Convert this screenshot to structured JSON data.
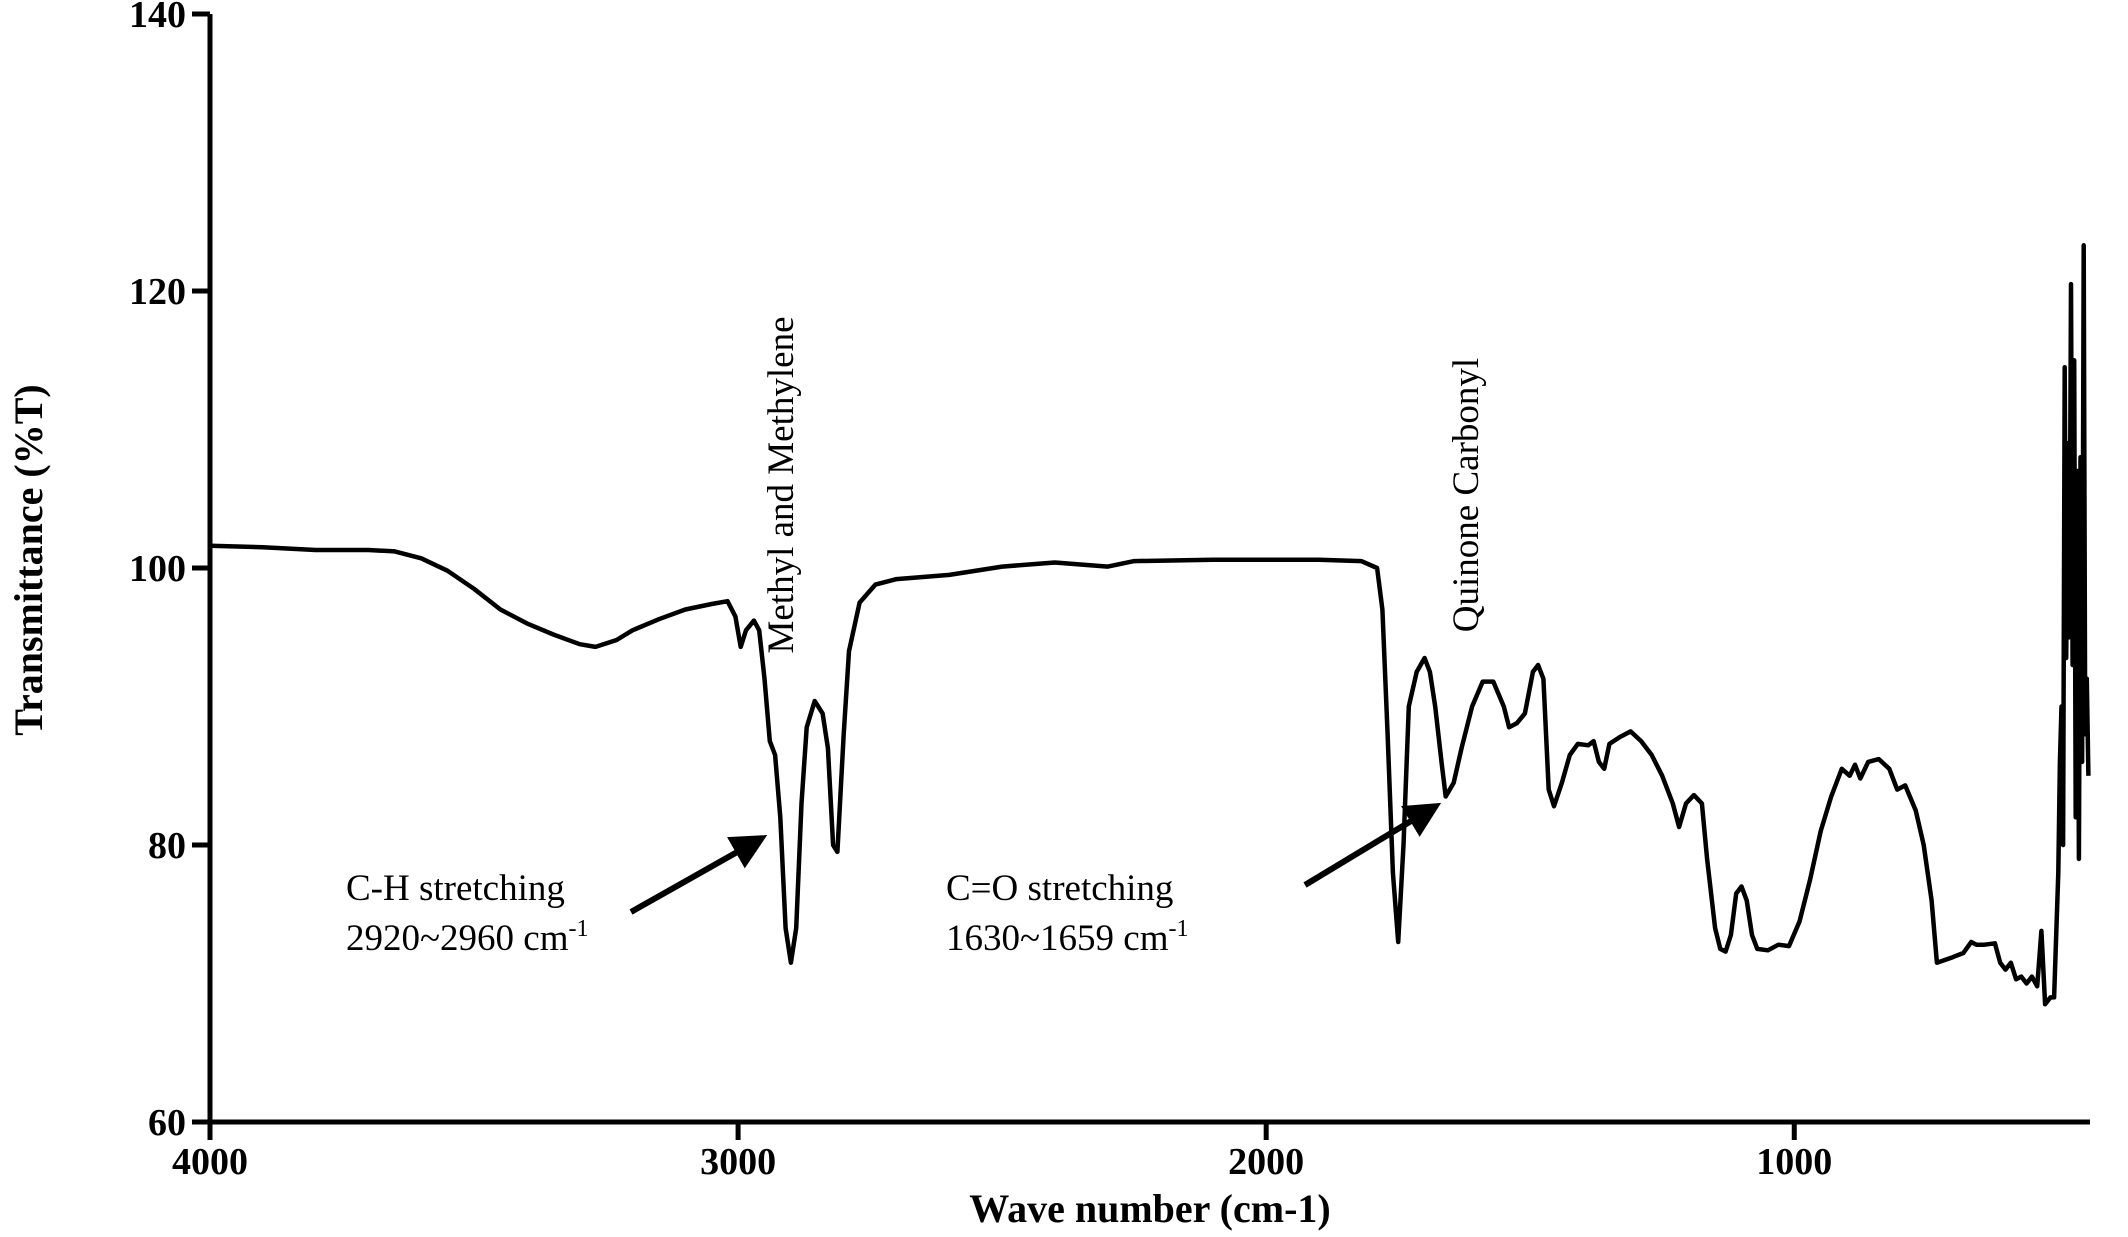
{
  "chart_data": {
    "type": "line",
    "x_label": "Wave number (cm-1)",
    "y_label": "Transmittance (%T)",
    "xlim": [
      4000,
      440
    ],
    "xticks": [
      4000,
      3000,
      2000,
      1000
    ],
    "ylim": [
      60,
      140
    ],
    "yticks": [
      60,
      80,
      100,
      120,
      140
    ],
    "grid": false,
    "annotations": [
      {
        "text": "Methyl and Methylene"
      },
      {
        "text": "Quinone Carbonyl"
      },
      {
        "text": "C-H stretching"
      },
      {
        "text": "2920~2960 cm",
        "sup": "-1"
      },
      {
        "text": "C=O stretching"
      },
      {
        "text": "1630~1659 cm",
        "sup": "-1"
      }
    ],
    "series": [
      {
        "color": "#000000",
        "x": [
          4000,
          3900,
          3800,
          3700,
          3650,
          3600,
          3550,
          3500,
          3450,
          3400,
          3350,
          3300,
          3270,
          3230,
          3200,
          3150,
          3100,
          3050,
          3020,
          3005,
          2995,
          2985,
          2970,
          2960,
          2950,
          2940,
          2930,
          2920,
          2910,
          2900,
          2890,
          2880,
          2870,
          2855,
          2840,
          2830,
          2820,
          2812,
          2800,
          2790,
          2770,
          2740,
          2700,
          2600,
          2500,
          2400,
          2300,
          2250,
          2100,
          2000,
          1900,
          1820,
          1790,
          1780,
          1770,
          1760,
          1750,
          1740,
          1730,
          1715,
          1700,
          1690,
          1680,
          1668,
          1660,
          1645,
          1630,
          1610,
          1590,
          1570,
          1550,
          1540,
          1525,
          1510,
          1495,
          1485,
          1475,
          1465,
          1455,
          1440,
          1425,
          1410,
          1390,
          1380,
          1370,
          1360,
          1350,
          1330,
          1310,
          1290,
          1270,
          1250,
          1230,
          1218,
          1205,
          1190,
          1175,
          1165,
          1150,
          1140,
          1130,
          1120,
          1110,
          1100,
          1090,
          1080,
          1070,
          1050,
          1030,
          1010,
          990,
          970,
          950,
          930,
          910,
          895,
          885,
          875,
          860,
          840,
          820,
          805,
          790,
          770,
          755,
          740,
          730,
          715,
          700,
          680,
          665,
          655,
          640,
          620,
          610,
          600,
          590,
          580,
          570,
          560,
          550,
          540,
          532,
          525,
          515,
          508,
          500,
          497,
          494,
          491,
          488,
          485,
          482,
          479,
          476,
          473,
          470,
          467,
          464,
          461,
          458,
          455,
          452,
          449,
          446,
          443
        ],
        "values": [
          101.6,
          101.5,
          101.3,
          101.3,
          101.2,
          100.7,
          99.8,
          98.5,
          97.0,
          96.0,
          95.2,
          94.5,
          94.3,
          94.8,
          95.5,
          96.3,
          97.0,
          97.4,
          97.6,
          96.5,
          94.3,
          95.5,
          96.2,
          95.5,
          92,
          87.5,
          86.5,
          82,
          74,
          71.5,
          74,
          83,
          88.5,
          90.4,
          89.5,
          87,
          80,
          79.5,
          88,
          94,
          97.5,
          98.8,
          99.2,
          99.5,
          100.1,
          100.4,
          100.1,
          100.5,
          100.6,
          100.6,
          100.6,
          100.5,
          100,
          97,
          88,
          78,
          73,
          80,
          90,
          92.5,
          93.5,
          92.5,
          90,
          86,
          83.5,
          84.5,
          87,
          90,
          91.8,
          91.8,
          90,
          88.5,
          88.8,
          89.5,
          92.5,
          93,
          92,
          84,
          82.8,
          84.5,
          86.5,
          87.3,
          87.2,
          87.5,
          86,
          85.5,
          87.3,
          87.8,
          88.2,
          87.5,
          86.5,
          85,
          83,
          81.3,
          83,
          83.6,
          83,
          79,
          74,
          72.5,
          72.3,
          73.5,
          76.5,
          77,
          76,
          73.5,
          72.5,
          72.4,
          72.8,
          72.7,
          74.5,
          77.5,
          81,
          83.5,
          85.5,
          85,
          85.8,
          84.8,
          86,
          86.2,
          85.5,
          84,
          84.3,
          82.5,
          80,
          76,
          71.5,
          71.7,
          71.9,
          72.2,
          73,
          72.8,
          72.8,
          72.9,
          71.5,
          71,
          71.5,
          70.3,
          70.5,
          70,
          70.5,
          69.8,
          73.8,
          68.5,
          69,
          69,
          78,
          86,
          90,
          80,
          114.5,
          93.5,
          109,
          95,
          120.5,
          93,
          115,
          82,
          107,
          79,
          108,
          86,
          123.3,
          88,
          92,
          85
        ]
      }
    ]
  }
}
